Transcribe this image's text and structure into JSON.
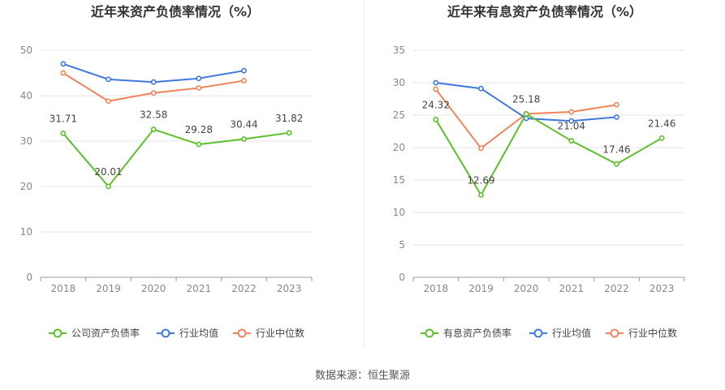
{
  "colors": {
    "green": "#5cc02a",
    "blue": "#3f78e0",
    "orange": "#f0845a",
    "grid": "#e6e6e6",
    "axis": "#999999",
    "tick_text": "#888888",
    "title_text": "#333333",
    "label_text": "#444444"
  },
  "source_text": "数据来源：恒生聚源",
  "chart_data": [
    {
      "type": "line",
      "title": "近年来资产负债率情况（%）",
      "categories": [
        "2018",
        "2019",
        "2020",
        "2021",
        "2022",
        "2023"
      ],
      "yticks": [
        "0",
        "10",
        "20",
        "30",
        "40",
        "50"
      ],
      "ylim": [
        0,
        50
      ],
      "series": [
        {
          "name": "公司资产负债率",
          "color": "#5cc02a",
          "values": [
            31.71,
            20.01,
            32.58,
            29.28,
            30.44,
            31.82
          ],
          "labels": [
            "31.71",
            "20.01",
            "32.58",
            "29.28",
            "30.44",
            "31.82"
          ]
        },
        {
          "name": "行业均值",
          "color": "#3f78e0",
          "values": [
            47.0,
            43.6,
            43.0,
            43.8,
            45.5,
            null
          ]
        },
        {
          "name": "行业中位数",
          "color": "#f0845a",
          "values": [
            45.0,
            38.8,
            40.6,
            41.7,
            43.3,
            null
          ]
        }
      ],
      "grid": true,
      "legend": "bottom"
    },
    {
      "type": "line",
      "title": "近年来有息资产负债率情况（%）",
      "categories": [
        "2018",
        "2019",
        "2020",
        "2021",
        "2022",
        "2023"
      ],
      "yticks": [
        "0",
        "5",
        "10",
        "15",
        "20",
        "25",
        "30",
        "35"
      ],
      "ylim": [
        0,
        35
      ],
      "series": [
        {
          "name": "有息资产负债率",
          "color": "#5cc02a",
          "values": [
            24.32,
            12.69,
            25.18,
            21.04,
            17.46,
            21.46
          ],
          "labels": [
            "24.32",
            "12.69",
            "25.18",
            "21.04",
            "17.46",
            "21.46"
          ]
        },
        {
          "name": "行业均值",
          "color": "#3f78e0",
          "values": [
            30.0,
            29.1,
            24.5,
            24.1,
            24.7,
            null
          ]
        },
        {
          "name": "行业中位数",
          "color": "#f0845a",
          "values": [
            29.0,
            19.9,
            25.2,
            25.5,
            26.6,
            null
          ]
        }
      ],
      "grid": true,
      "legend": "bottom"
    }
  ]
}
